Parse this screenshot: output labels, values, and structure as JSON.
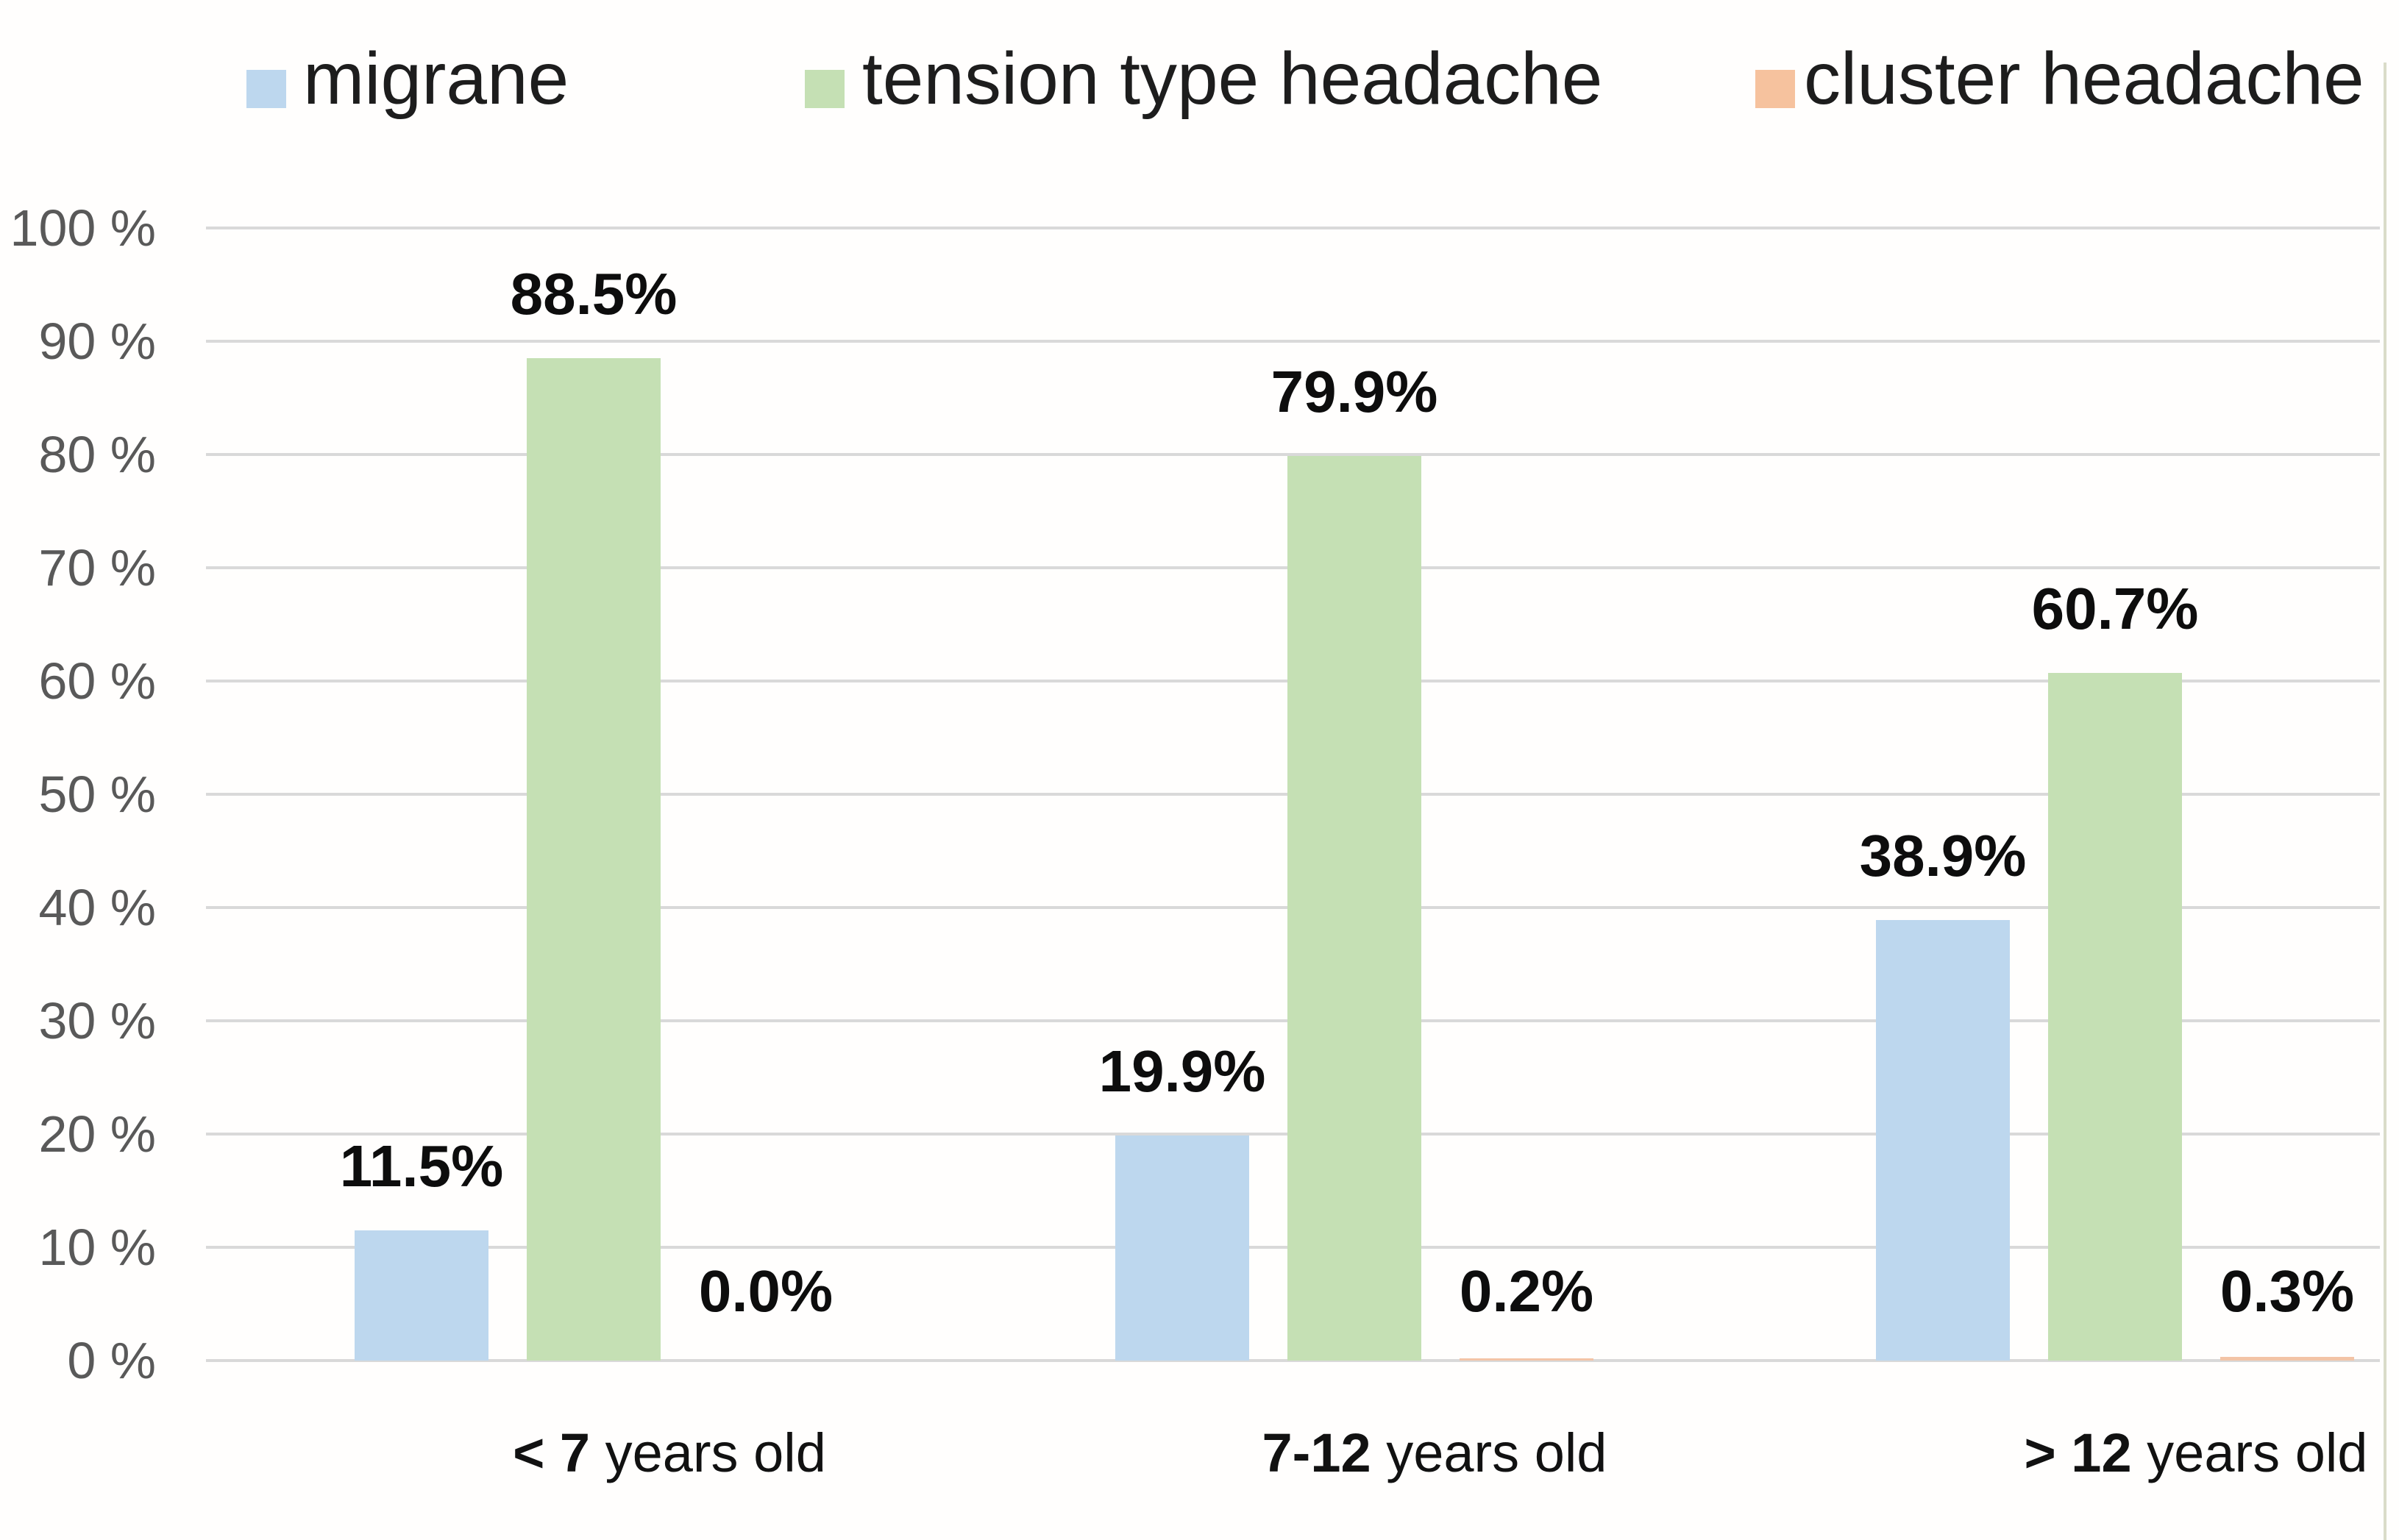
{
  "legend": {
    "items": [
      {
        "label": "migrane",
        "color": "#bdd7ee"
      },
      {
        "label": "tension type headache",
        "color": "#c5e0b4"
      },
      {
        "label": "cluster headache",
        "color": "#f6c29e"
      }
    ]
  },
  "chart_data": {
    "type": "bar",
    "title": "",
    "xlabel": "",
    "ylabel": "",
    "categories": [
      "< 7 years old",
      "7-12 years old",
      "> 12 years old"
    ],
    "category_labels": [
      {
        "bold": "< 7",
        "rest": " years old"
      },
      {
        "bold": "7-12",
        "rest": " years old"
      },
      {
        "bold": "> 12",
        "rest": " years old"
      }
    ],
    "series": [
      {
        "name": "migrane",
        "color": "#bdd7ee",
        "values": [
          11.5,
          19.9,
          38.9
        ],
        "labels": [
          "11.5%",
          "19.9%",
          "38.9%"
        ]
      },
      {
        "name": "tension type headache",
        "color": "#c5e0b4",
        "values": [
          88.5,
          79.9,
          60.7
        ],
        "labels": [
          "88.5%",
          "79.9%",
          "60.7%"
        ]
      },
      {
        "name": "cluster headache",
        "color": "#f3c4a6",
        "values": [
          0.0,
          0.2,
          0.3
        ],
        "labels": [
          "0.0%",
          "0.2%",
          "0.3%"
        ]
      }
    ],
    "ylim": [
      0,
      100
    ],
    "yticks": {
      "values": [
        100,
        90,
        80,
        70,
        60,
        50,
        40,
        30,
        20,
        10,
        0
      ],
      "labels": [
        "100 %",
        "90 %",
        "80 %",
        "70 %",
        "60 %",
        "50 %",
        "40 %",
        "30 %",
        "20 %",
        "10 %",
        "0 %"
      ]
    },
    "grid": "horizontal",
    "legend_position": "top"
  },
  "colors": {
    "grid": "#d9d9d9",
    "axis_text": "#595959",
    "data_label": "#0d0d0d",
    "background": "#fffefd",
    "edge_line": "#dadcc9"
  }
}
